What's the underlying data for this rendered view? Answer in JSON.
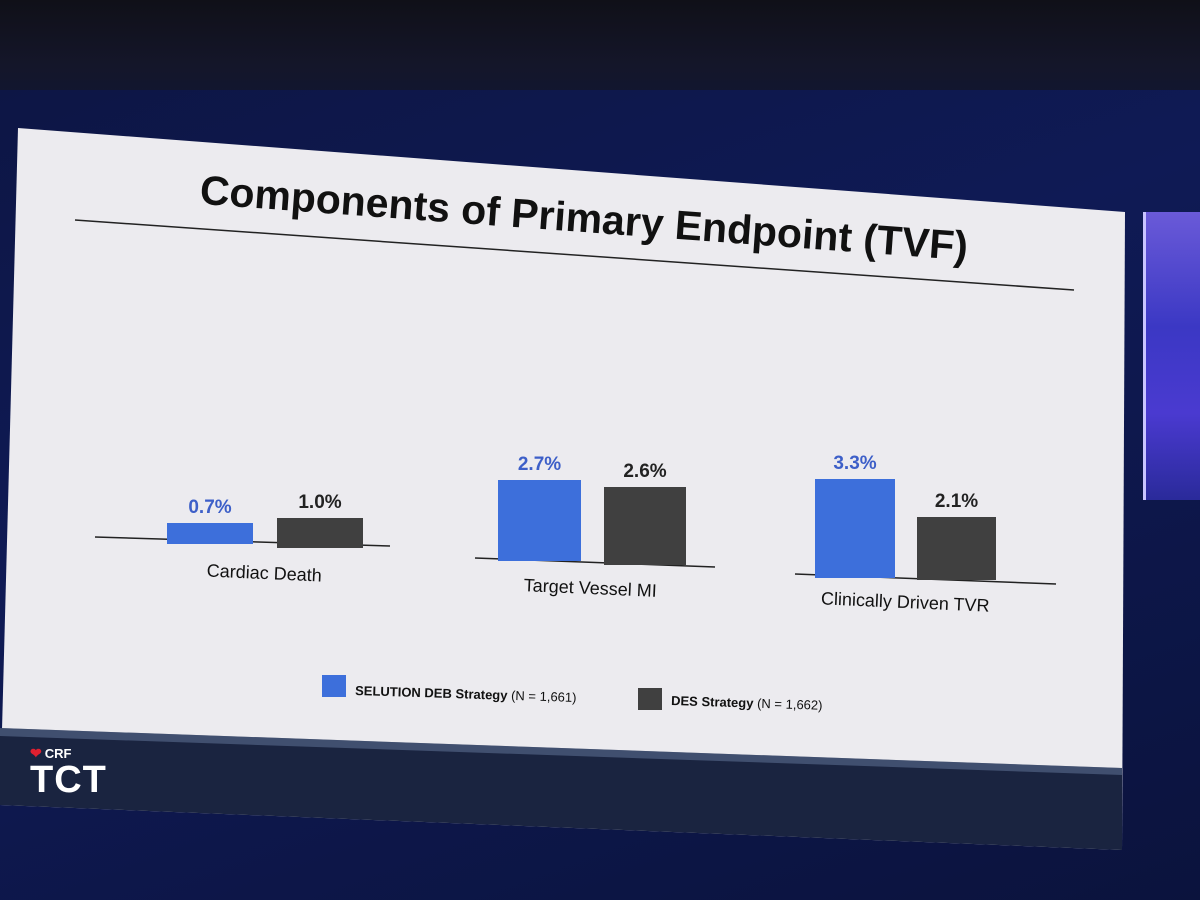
{
  "slide": {
    "title": "Components of Primary Endpoint (TVF)"
  },
  "colors": {
    "deb": "#3d6fdb",
    "des": "#404040",
    "deb_label": "#3d5fc8",
    "des_label": "#222222",
    "slide_bg": "#ecebef"
  },
  "chart_data": {
    "type": "bar",
    "title": "Components of Primary Endpoint (TVF)",
    "categories": [
      "Cardiac Death",
      "Target Vessel MI",
      "Clinically Driven TVR"
    ],
    "series": [
      {
        "name": "SELUTION DEB Strategy",
        "n_label": "(N = 1,661)",
        "values": [
          0.7,
          2.7,
          3.3
        ],
        "labels": [
          "0.7%",
          "2.7%",
          "3.3%"
        ]
      },
      {
        "name": "DES Strategy",
        "n_label": "(N = 1,662)",
        "values": [
          1.0,
          2.6,
          2.1
        ],
        "labels": [
          "1.0%",
          "2.6%",
          "2.1%"
        ]
      }
    ],
    "unit": "%",
    "ylim": [
      0,
      3.5
    ],
    "legend_position": "bottom"
  },
  "branding": {
    "org": "CRF",
    "event": "TCT",
    "logo_icon": "heart-icon"
  }
}
